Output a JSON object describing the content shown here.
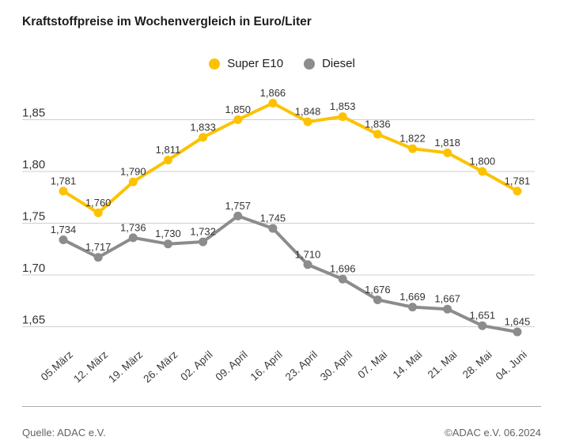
{
  "title": "Kraftstoffpreise im Wochenvergleich in Euro/Liter",
  "legend": {
    "items": [
      {
        "label": "Super E10",
        "color": "#FCC200"
      },
      {
        "label": "Diesel",
        "color": "#8C8C8C"
      }
    ]
  },
  "chart_data": {
    "type": "line",
    "title": "Kraftstoffpreise im Wochenvergleich in Euro/Liter",
    "unit": "Euro/Liter",
    "categories": [
      "05.März",
      "12. März",
      "19. März",
      "26. März",
      "02. April",
      "09. April",
      "16. April",
      "23. April",
      "30. April",
      "07. Mai",
      "14. Mai",
      "21. Mai",
      "28. Mai",
      "04. Juni"
    ],
    "series": [
      {
        "name": "Super E10",
        "color": "#FCC200",
        "values": [
          1.781,
          1.76,
          1.79,
          1.811,
          1.833,
          1.85,
          1.866,
          1.848,
          1.853,
          1.836,
          1.822,
          1.818,
          1.8,
          1.781
        ],
        "labels": [
          "1,781",
          "1,760",
          "1,790",
          "1,811",
          "1,833",
          "1,850",
          "1,866",
          "1,848",
          "1,853",
          "1,836",
          "1,822",
          "1,818",
          "1,800",
          "1,781"
        ]
      },
      {
        "name": "Diesel",
        "color": "#8C8C8C",
        "values": [
          1.734,
          1.717,
          1.736,
          1.73,
          1.732,
          1.757,
          1.745,
          1.71,
          1.696,
          1.676,
          1.669,
          1.667,
          1.651,
          1.645
        ],
        "labels": [
          "1,734",
          "1,717",
          "1,736",
          "1,730",
          "1,732",
          "1,757",
          "1,745",
          "1,710",
          "1,696",
          "1,676",
          "1,669",
          "1,667",
          "1,651",
          "1,645"
        ]
      }
    ],
    "y_axis": {
      "ticks": [
        1.85,
        1.8,
        1.75,
        1.7,
        1.65
      ],
      "tick_labels": [
        "1,85",
        "1,80",
        "1,75",
        "1,70",
        "1,65"
      ],
      "min": 1.62,
      "max": 1.88
    },
    "grid": true,
    "legend_position": "top-center",
    "grid_color": "#cfcfcf",
    "label_color": "#333333",
    "x_label_color": "#3a3a3a"
  },
  "footer": {
    "source": "Quelle: ADAC e.V.",
    "copyright": "©ADAC e.V. 06.2024"
  }
}
